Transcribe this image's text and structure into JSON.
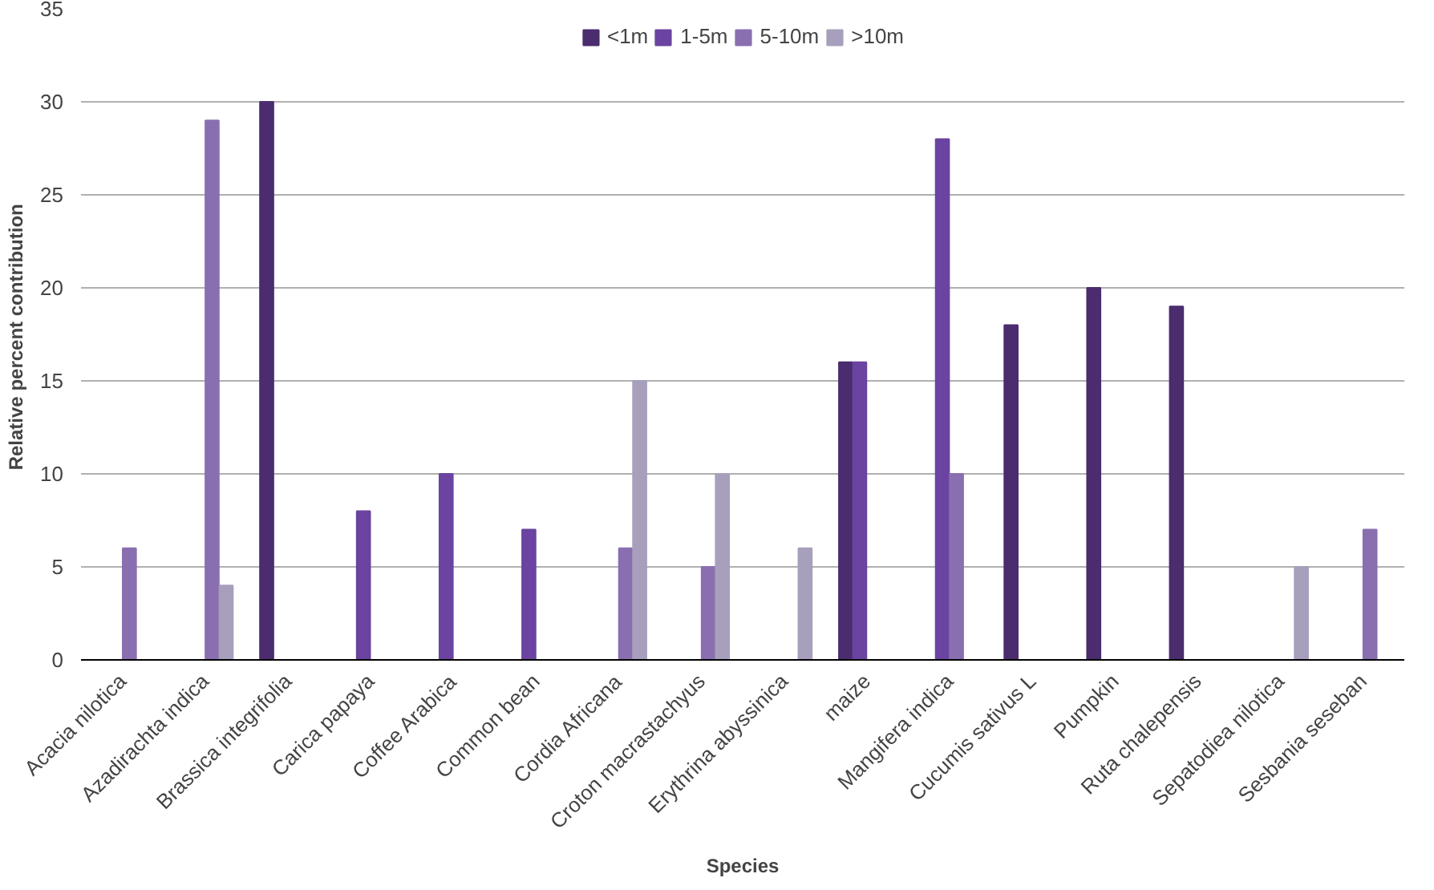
{
  "chart_data": {
    "type": "bar",
    "xlabel": "Species",
    "ylabel": "Relative percent  contribution",
    "categories": [
      "Acacia nilotica",
      "Azadirachta indica",
      "Brassica integrifolia",
      "Carica papaya",
      "Coffee Arabica",
      "Common bean",
      "Cordia Africana",
      "Croton macrastachyus",
      "Erythrina abyssinica",
      "maize",
      "Mangifera indica",
      "Cucumis sativus L",
      "Pumpkin",
      "Ruta chalepensis",
      "Sepatodiea nilotica",
      "Sesbania seseban"
    ],
    "series": [
      {
        "name": "<1m",
        "color": "#4b2c6e",
        "values": [
          null,
          null,
          30,
          null,
          null,
          null,
          null,
          null,
          null,
          16,
          null,
          18,
          20,
          19,
          null,
          null
        ]
      },
      {
        "name": "1-5m",
        "color": "#6a44a0",
        "values": [
          null,
          null,
          null,
          8,
          10,
          7,
          null,
          null,
          null,
          16,
          28,
          null,
          null,
          null,
          null,
          null
        ]
      },
      {
        "name": "5-10m",
        "color": "#8a6fb0",
        "values": [
          6,
          29,
          null,
          null,
          null,
          null,
          6,
          5,
          null,
          null,
          10,
          null,
          null,
          null,
          null,
          7
        ]
      },
      {
        "name": ">10m",
        "color": "#a79fbc",
        "values": [
          null,
          4,
          null,
          null,
          null,
          null,
          15,
          10,
          6,
          null,
          null,
          null,
          null,
          null,
          5,
          null
        ]
      }
    ],
    "ylim": [
      0,
      35
    ],
    "yticks": [
      0,
      5,
      10,
      15,
      20,
      25,
      30,
      35
    ],
    "grid": "y",
    "legend": "top"
  }
}
